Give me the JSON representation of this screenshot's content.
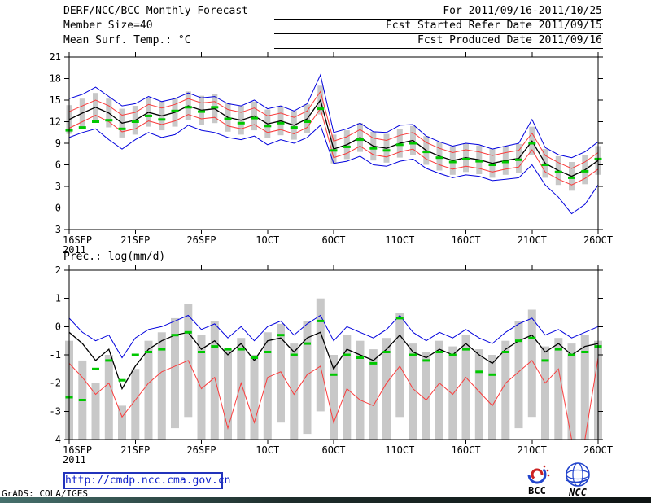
{
  "header": {
    "title": "DERF/NCC/BCC Monthly Forecast",
    "member_size": "Member Size=40",
    "top_var_label": "Mean Surf. Temp.: °C",
    "for_range": "For 2011/09/16-2011/10/25",
    "refer_date": "Fcst Started Refer Date 2011/09/15",
    "produced_date": "Fcst Produced Date 2011/09/16"
  },
  "bottom_panel_label": "Prec.: log(mm/d)",
  "footer": {
    "url": "http://cmdp.ncc.cma.gov.cn",
    "credit": "GrADS: COLA/IGES",
    "bcc_logo_label": "BCC",
    "ncc_logo_label": "NCC"
  },
  "colors": {
    "envelope_blue": "#0000dd",
    "std_red": "#fa3c3c",
    "mean_black": "#000000",
    "obs_green": "#00c800",
    "spread_gray": "#c8c8c8"
  },
  "chart_data": [
    {
      "type": "line",
      "title": "Mean Surf. Temp.: °C",
      "x_tick_labels": [
        "16SEP",
        "21SEP",
        "26SEP",
        "1OCT",
        "6OCT",
        "11OCT",
        "16OCT",
        "21OCT",
        "26OCT"
      ],
      "x_tick_positions": [
        0,
        5,
        10,
        15,
        20,
        25,
        30,
        35,
        40
      ],
      "x_sub_label": "2011",
      "ylim": [
        -3,
        21
      ],
      "y_ticks": [
        -3,
        0,
        3,
        6,
        9,
        12,
        15,
        18,
        21
      ],
      "n_points": 41,
      "bars": {
        "name": "ensemble-spread-bar",
        "color": "#c8c8c8",
        "low": [
          10.3,
          11.2,
          12.0,
          11.2,
          9.8,
          10.2,
          11.3,
          10.8,
          11.3,
          12.2,
          11.6,
          11.8,
          10.6,
          10.2,
          10.8,
          9.7,
          10.1,
          9.5,
          10.4,
          13.0,
          6.2,
          6.8,
          7.8,
          6.6,
          6.3,
          7.0,
          7.4,
          6.0,
          5.2,
          4.6,
          5.0,
          4.7,
          4.2,
          4.6,
          4.9,
          7.3,
          4.2,
          3.2,
          2.4,
          3.3,
          4.6
        ],
        "high": [
          14.3,
          15.2,
          16.0,
          15.2,
          13.8,
          14.2,
          15.3,
          14.8,
          15.3,
          16.2,
          15.6,
          15.8,
          14.6,
          14.2,
          14.8,
          13.7,
          14.1,
          13.5,
          14.4,
          17.0,
          10.2,
          10.8,
          11.8,
          10.6,
          10.3,
          11.0,
          11.4,
          10.0,
          9.2,
          8.6,
          9.0,
          8.7,
          8.2,
          8.6,
          8.9,
          11.3,
          8.2,
          7.2,
          6.4,
          7.3,
          8.6
        ]
      },
      "series": [
        {
          "name": "ensemble-max-line",
          "color": "#0000dd",
          "width": 1,
          "values": [
            15.2,
            15.8,
            16.8,
            15.5,
            14.2,
            14.5,
            15.5,
            14.8,
            15.2,
            16.0,
            15.3,
            15.5,
            14.5,
            14.2,
            15.0,
            13.8,
            14.2,
            13.5,
            14.5,
            18.5,
            10.5,
            11.0,
            11.8,
            10.6,
            10.5,
            11.5,
            11.6,
            10.0,
            9.2,
            8.6,
            9.0,
            8.8,
            8.2,
            8.6,
            9.0,
            12.3,
            8.4,
            7.4,
            7.0,
            7.8,
            9.2
          ]
        },
        {
          "name": "ensemble-min-line",
          "color": "#0000dd",
          "width": 1,
          "values": [
            9.8,
            10.5,
            11.0,
            9.5,
            8.2,
            9.5,
            10.5,
            9.8,
            10.2,
            11.5,
            10.8,
            10.5,
            9.8,
            9.5,
            10.0,
            8.8,
            9.5,
            9.0,
            9.8,
            11.5,
            6.2,
            6.5,
            7.2,
            6.0,
            5.8,
            6.5,
            6.8,
            5.5,
            4.8,
            4.2,
            4.6,
            4.4,
            3.8,
            4.0,
            4.2,
            6.0,
            3.2,
            1.5,
            -0.8,
            0.5,
            3.2
          ]
        },
        {
          "name": "plus-std-line",
          "color": "#fa3c3c",
          "width": 1,
          "values": [
            13.4,
            14.2,
            15.0,
            14.2,
            12.9,
            13.3,
            14.4,
            13.9,
            14.4,
            15.2,
            14.6,
            14.8,
            13.7,
            13.3,
            13.9,
            12.8,
            13.2,
            12.6,
            13.5,
            16.2,
            9.3,
            9.9,
            10.9,
            9.7,
            9.4,
            10.1,
            10.5,
            9.1,
            8.3,
            7.7,
            8.1,
            7.8,
            7.3,
            7.7,
            8.0,
            10.4,
            7.3,
            6.3,
            5.5,
            6.4,
            7.7
          ]
        },
        {
          "name": "minus-std-line",
          "color": "#fa3c3c",
          "width": 1,
          "values": [
            11.1,
            12.0,
            12.9,
            12.0,
            10.6,
            11.0,
            12.1,
            11.6,
            12.1,
            13.0,
            12.4,
            12.6,
            11.4,
            11.0,
            11.6,
            10.5,
            10.9,
            10.3,
            11.2,
            13.8,
            7.0,
            7.6,
            8.6,
            7.4,
            7.1,
            7.8,
            8.2,
            6.8,
            6.0,
            5.4,
            5.8,
            5.5,
            5.0,
            5.4,
            5.7,
            8.1,
            5.0,
            4.0,
            3.2,
            4.1,
            5.4
          ]
        },
        {
          "name": "ensemble-mean-line",
          "color": "#000000",
          "width": 1.3,
          "values": [
            12.3,
            13.2,
            14.0,
            13.2,
            11.8,
            12.2,
            13.3,
            12.8,
            13.3,
            14.2,
            13.6,
            13.8,
            12.6,
            12.2,
            12.8,
            11.7,
            12.1,
            11.5,
            12.4,
            15.0,
            8.2,
            8.8,
            9.8,
            8.6,
            8.3,
            9.0,
            9.4,
            8.0,
            7.2,
            6.6,
            7.0,
            6.7,
            6.2,
            6.6,
            6.9,
            9.3,
            6.2,
            5.2,
            4.4,
            5.3,
            6.6
          ]
        }
      ],
      "dashes": {
        "name": "observation-dash",
        "color": "#00c800",
        "values": [
          10.8,
          11.2,
          12.0,
          12.2,
          11.0,
          12.0,
          12.8,
          12.3,
          13.5,
          14.0,
          13.4,
          14.0,
          12.4,
          11.8,
          12.5,
          11.4,
          11.8,
          11.2,
          12.0,
          13.8,
          8.0,
          8.5,
          9.5,
          8.3,
          8.0,
          8.8,
          9.0,
          7.8,
          7.0,
          6.4,
          6.8,
          6.5,
          6.0,
          6.4,
          6.7,
          9.0,
          6.0,
          5.0,
          4.2,
          5.1,
          6.8
        ]
      }
    },
    {
      "type": "line",
      "title": "Prec.: log(mm/d)",
      "x_tick_labels": [
        "16SEP",
        "21SEP",
        "26SEP",
        "1OCT",
        "6OCT",
        "11OCT",
        "16OCT",
        "21OCT",
        "26OCT"
      ],
      "x_tick_positions": [
        0,
        5,
        10,
        15,
        20,
        25,
        30,
        35,
        40
      ],
      "x_sub_label": "2011",
      "ylim": [
        -4,
        2
      ],
      "y_ticks": [
        -4,
        -3,
        -2,
        -1,
        0,
        1,
        2
      ],
      "n_points": 41,
      "bars": {
        "name": "ensemble-spread-bar",
        "color": "#c8c8c8",
        "low": [
          -4,
          -4,
          -4,
          -4,
          -4,
          -4,
          -4,
          -4,
          -3.6,
          -3.2,
          -4,
          -4,
          -4,
          -4,
          -4,
          -4,
          -3.4,
          -4,
          -3.8,
          -3.0,
          -4,
          -4,
          -4,
          -4,
          -4,
          -3.2,
          -4,
          -4,
          -4,
          -4,
          -4,
          -4,
          -4,
          -4,
          -3.6,
          -3.2,
          -4,
          -4,
          -4,
          -4,
          -4
        ],
        "high": [
          -0.5,
          -1.2,
          -2.0,
          -1.0,
          -2.8,
          -1.5,
          -0.5,
          -0.2,
          0.3,
          0.8,
          -0.3,
          0.2,
          -0.8,
          -0.4,
          -1.0,
          -0.2,
          0.1,
          -0.6,
          0.2,
          1.0,
          -1.0,
          -0.3,
          -0.5,
          -0.8,
          -0.4,
          0.5,
          -0.6,
          -0.9,
          -0.5,
          -0.7,
          -0.3,
          -0.8,
          -1.0,
          -0.5,
          0.2,
          0.6,
          -0.7,
          -0.4,
          -0.6,
          -0.3,
          -0.5
        ]
      },
      "series": [
        {
          "name": "ensemble-max-line",
          "color": "#0000dd",
          "width": 1,
          "values": [
            0.3,
            -0.2,
            -0.5,
            -0.3,
            -1.1,
            -0.4,
            -0.1,
            0.0,
            0.2,
            0.4,
            -0.1,
            0.1,
            -0.4,
            0.0,
            -0.5,
            0.0,
            0.2,
            -0.3,
            0.1,
            0.4,
            -0.5,
            0.0,
            -0.2,
            -0.4,
            -0.1,
            0.4,
            -0.2,
            -0.5,
            -0.2,
            -0.4,
            -0.1,
            -0.4,
            -0.6,
            -0.2,
            0.1,
            0.3,
            -0.3,
            -0.1,
            -0.4,
            -0.2,
            0.0
          ]
        },
        {
          "name": "minus-std-line",
          "color": "#fa3c3c",
          "width": 1,
          "values": [
            -1.3,
            -1.8,
            -2.4,
            -2.0,
            -3.2,
            -2.6,
            -2.0,
            -1.6,
            -1.4,
            -1.2,
            -2.2,
            -1.8,
            -3.6,
            -2.0,
            -3.4,
            -1.8,
            -1.6,
            -2.4,
            -1.7,
            -1.4,
            -3.4,
            -2.2,
            -2.6,
            -2.8,
            -2.0,
            -1.4,
            -2.2,
            -2.6,
            -2.0,
            -2.4,
            -1.8,
            -2.3,
            -2.8,
            -2.0,
            -1.6,
            -1.2,
            -2.0,
            -1.5,
            -4.0,
            -4.0,
            -1.1
          ]
        },
        {
          "name": "ensemble-mean-line",
          "color": "#000000",
          "width": 1.3,
          "values": [
            -0.2,
            -0.6,
            -1.2,
            -0.8,
            -2.2,
            -1.4,
            -0.8,
            -0.5,
            -0.3,
            -0.2,
            -0.8,
            -0.5,
            -1.0,
            -0.6,
            -1.2,
            -0.5,
            -0.4,
            -0.9,
            -0.4,
            -0.2,
            -1.5,
            -0.8,
            -1.0,
            -1.2,
            -0.8,
            -0.3,
            -0.9,
            -1.1,
            -0.8,
            -1.0,
            -0.6,
            -1.0,
            -1.3,
            -0.8,
            -0.5,
            -0.3,
            -0.9,
            -0.6,
            -1.0,
            -0.7,
            -0.6
          ]
        }
      ],
      "dashes": {
        "name": "observation-dash",
        "color": "#00c800",
        "values": [
          -2.5,
          -2.6,
          -1.5,
          -1.2,
          -1.9,
          -1.0,
          -0.9,
          -0.8,
          -0.3,
          -0.2,
          -0.9,
          -0.7,
          -0.8,
          -0.8,
          -1.1,
          -0.9,
          -0.3,
          -1.0,
          -0.6,
          0.2,
          -1.7,
          -1.0,
          -1.1,
          -1.3,
          -0.9,
          0.3,
          -1.0,
          -1.2,
          -0.9,
          -1.0,
          -0.8,
          -1.6,
          -1.7,
          -0.9,
          -0.5,
          -0.4,
          -1.2,
          -0.8,
          -1.0,
          -0.9,
          -0.7
        ]
      }
    }
  ]
}
